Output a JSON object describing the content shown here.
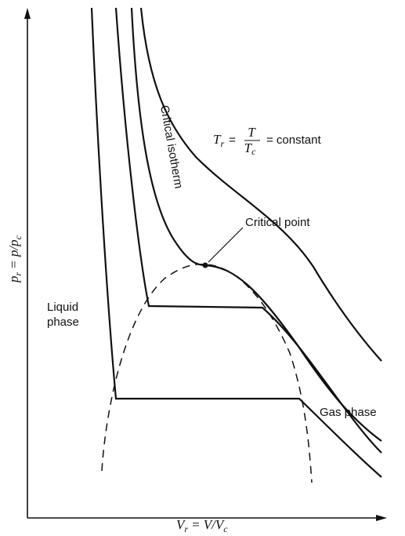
{
  "labels": {
    "isotherm_constant": {
      "symbol": "T",
      "subscript": "r",
      "equals": "=",
      "numerator": "T",
      "denominator": "T",
      "denominator_subscript": "c",
      "rest": "= constant"
    },
    "critical_isotherm": "Critical isotherm",
    "critical_point": "Critical point",
    "liquid_phase": [
      "Liquid",
      "phase"
    ],
    "gas_phase": "Gas phase"
  },
  "axes": {
    "x_label": {
      "symbol": "V",
      "subscript": "r",
      "definition": "= V/V",
      "definition_subscript": "c"
    },
    "y_label": {
      "symbol": "p",
      "subscript": "r",
      "definition": "= p/p",
      "definition_subscript": "c"
    }
  }
}
